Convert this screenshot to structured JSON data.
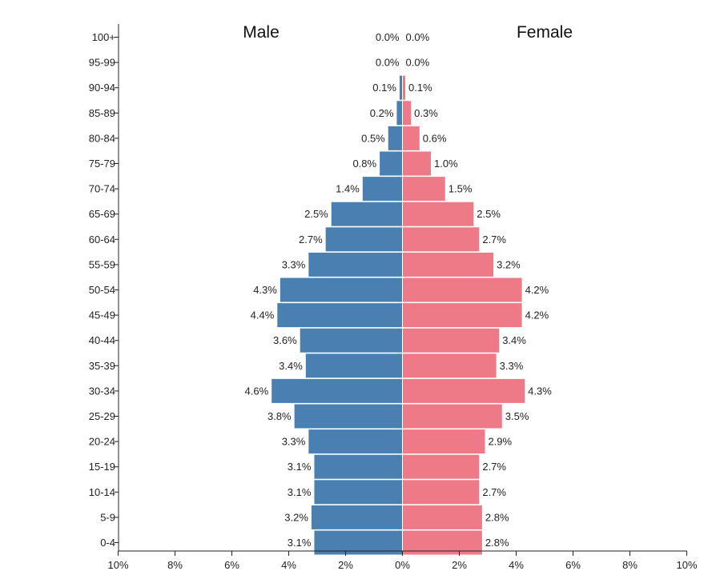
{
  "chart_data": {
    "type": "bar",
    "orientation": "horizontal-population-pyramid",
    "left_header": "Male",
    "right_header": "Female",
    "categories": [
      "0-4",
      "5-9",
      "10-14",
      "15-19",
      "20-24",
      "25-29",
      "30-34",
      "35-39",
      "40-44",
      "45-49",
      "50-54",
      "55-59",
      "60-64",
      "65-69",
      "70-74",
      "75-79",
      "80-84",
      "85-89",
      "90-94",
      "95-99",
      "100+"
    ],
    "series": [
      {
        "name": "Male",
        "color": "#4a7fb2",
        "values": [
          3.1,
          3.2,
          3.1,
          3.1,
          3.3,
          3.8,
          4.6,
          3.4,
          3.6,
          4.4,
          4.3,
          3.3,
          2.7,
          2.5,
          1.4,
          0.8,
          0.5,
          0.2,
          0.1,
          0.0,
          0.0
        ],
        "labels": [
          "3.1%",
          "3.2%",
          "3.1%",
          "3.1%",
          "3.3%",
          "3.8%",
          "4.6%",
          "3.4%",
          "3.6%",
          "4.4%",
          "4.3%",
          "3.3%",
          "2.7%",
          "2.5%",
          "1.4%",
          "0.8%",
          "0.5%",
          "0.2%",
          "0.1%",
          "0.0%",
          "0.0%"
        ]
      },
      {
        "name": "Female",
        "color": "#ee7a88",
        "values": [
          2.8,
          2.8,
          2.7,
          2.7,
          2.9,
          3.5,
          4.3,
          3.3,
          3.4,
          4.2,
          4.2,
          3.2,
          2.7,
          2.5,
          1.5,
          1.0,
          0.6,
          0.3,
          0.1,
          0.0,
          0.0
        ],
        "labels": [
          "2.8%",
          "2.8%",
          "2.7%",
          "2.7%",
          "2.9%",
          "3.5%",
          "4.3%",
          "3.3%",
          "3.4%",
          "4.2%",
          "4.2%",
          "3.2%",
          "2.7%",
          "2.5%",
          "1.5%",
          "1.0%",
          "0.6%",
          "0.3%",
          "0.1%",
          "0.0%",
          "0.0%"
        ]
      }
    ],
    "x_range": [
      -10,
      10
    ],
    "x_ticks": [
      -10,
      -8,
      -6,
      -4,
      -2,
      0,
      2,
      4,
      6,
      8,
      10
    ],
    "x_tick_labels": [
      "10%",
      "8%",
      "6%",
      "4%",
      "2%",
      "0%",
      "2%",
      "4%",
      "6%",
      "8%",
      "10%"
    ],
    "grid": false,
    "legend": "none"
  }
}
